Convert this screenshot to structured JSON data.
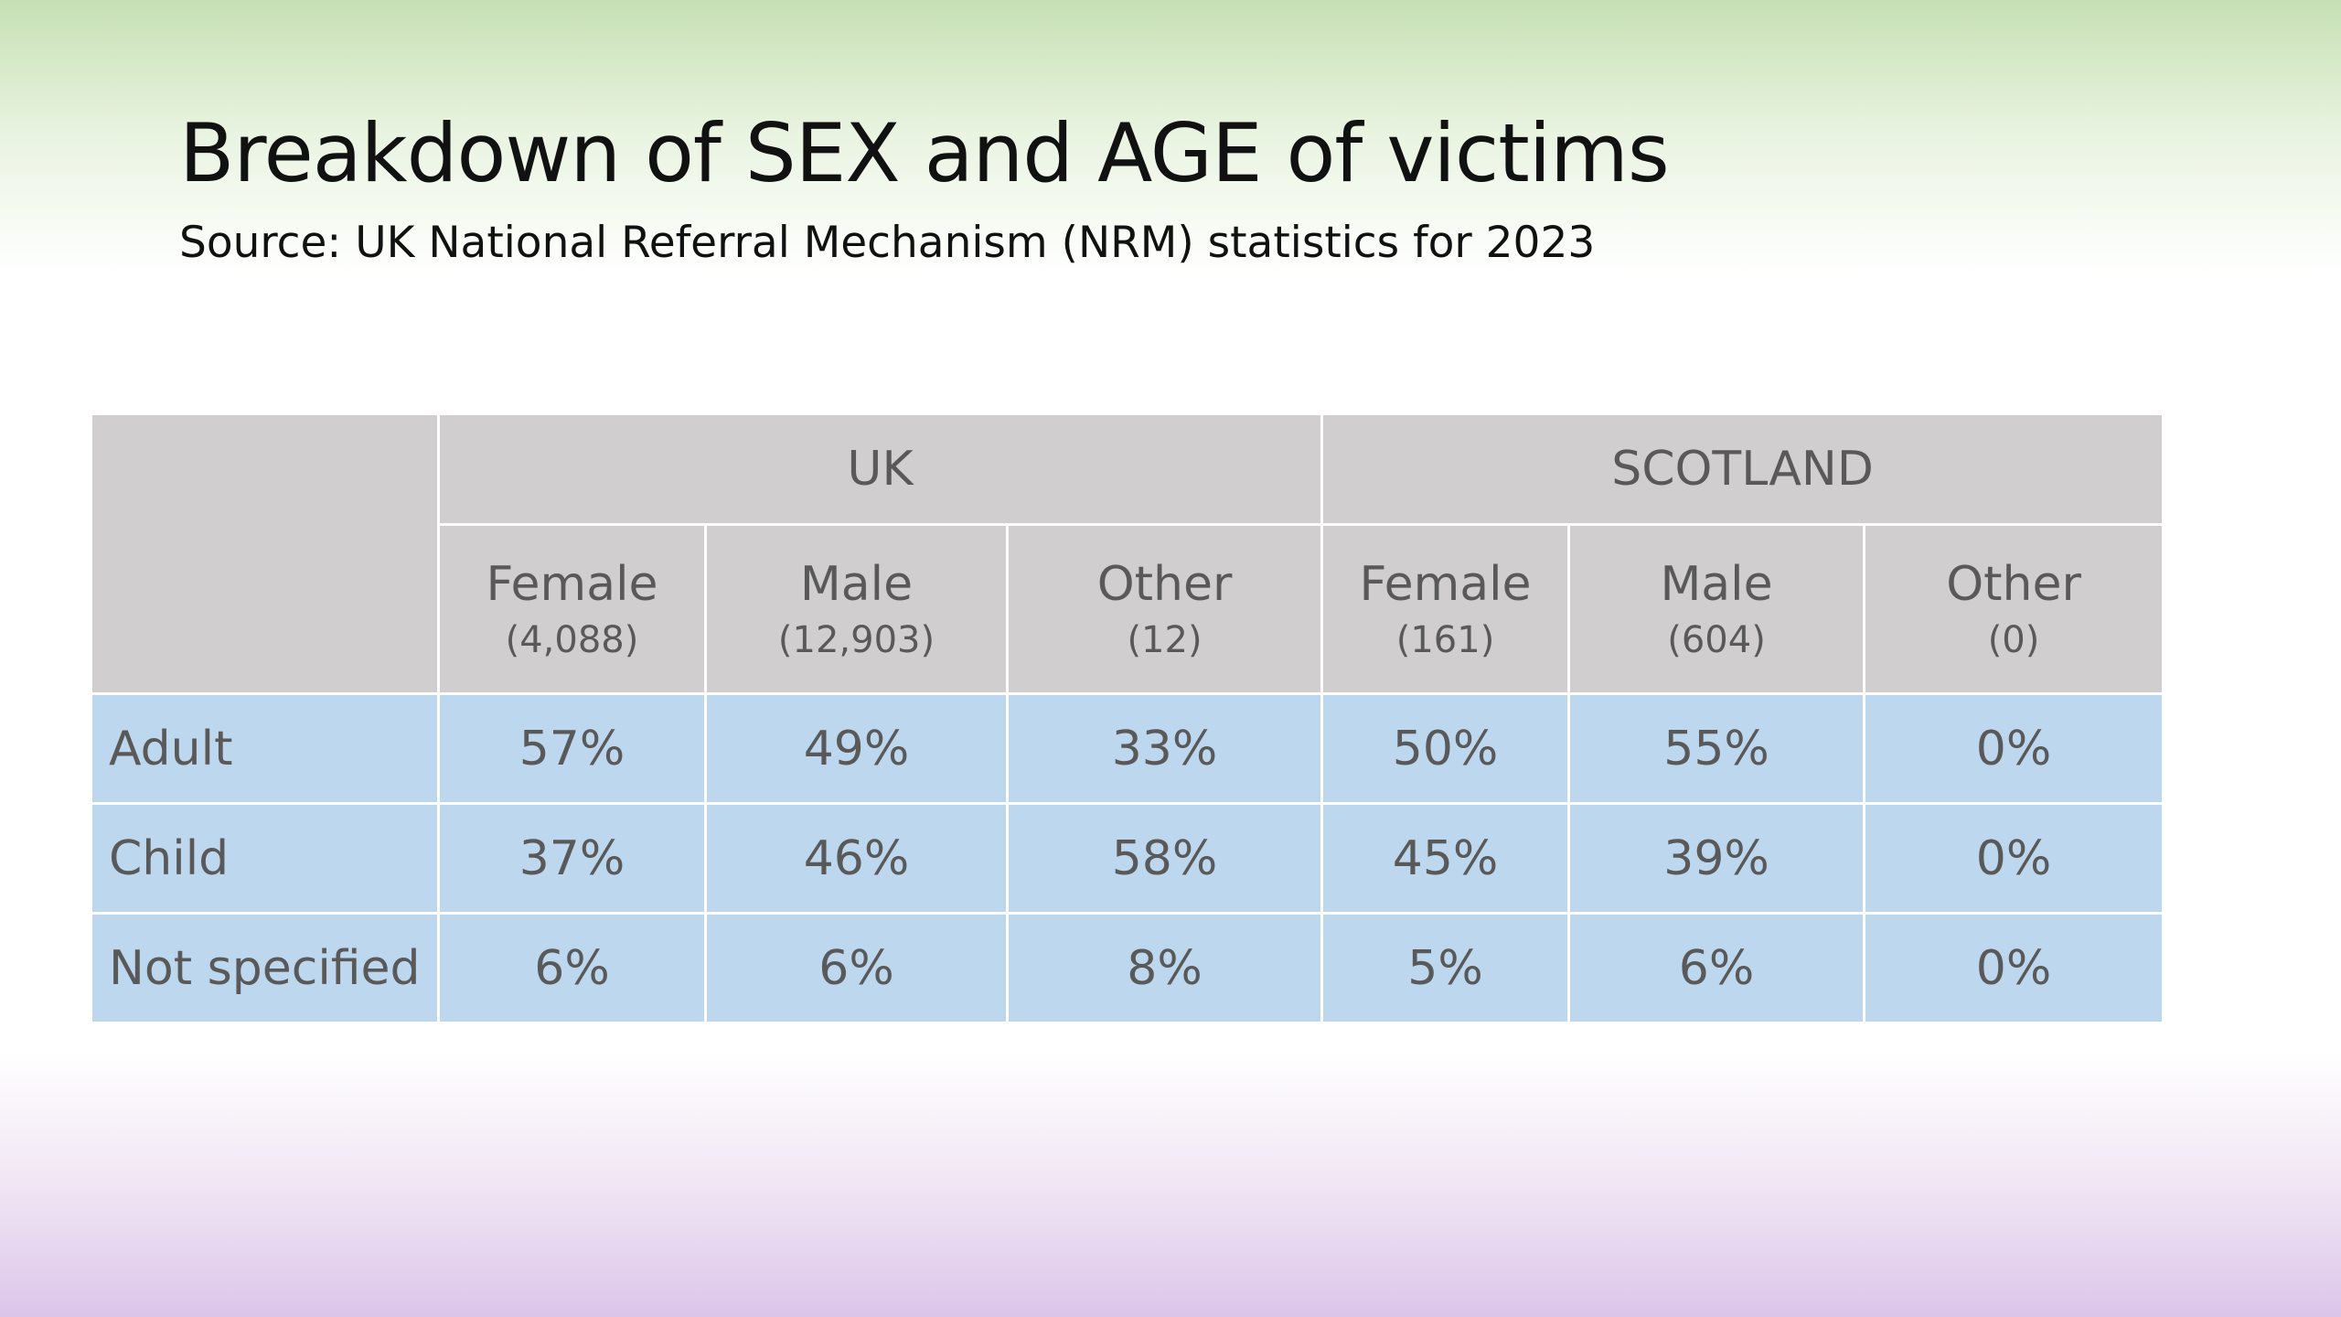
{
  "title": "Breakdown of SEX and AGE of victims",
  "subtitle": "Source: UK National Referral Mechanism (NRM) statistics for 2023",
  "table": {
    "groups": [
      {
        "label": "UK",
        "columns": [
          {
            "sex": "Female",
            "count": "(4,088)"
          },
          {
            "sex": "Male",
            "count": "(12,903)"
          },
          {
            "sex": "Other",
            "count": "(12)"
          }
        ]
      },
      {
        "label": "SCOTLAND",
        "columns": [
          {
            "sex": "Female",
            "count": "(161)"
          },
          {
            "sex": "Male",
            "count": "(604)"
          },
          {
            "sex": "Other",
            "count": "(0)"
          }
        ]
      }
    ],
    "rows": [
      {
        "label": "Adult",
        "values": [
          "57%",
          "49%",
          "33%",
          "50%",
          "55%",
          "0%"
        ]
      },
      {
        "label": "Child",
        "values": [
          "37%",
          "46%",
          "58%",
          "45%",
          "39%",
          "0%"
        ]
      },
      {
        "label": "Not specified",
        "values": [
          "6%",
          "6%",
          "8%",
          "5%",
          "6%",
          "0%"
        ]
      }
    ]
  },
  "colors": {
    "header_fill": "#d0cece",
    "body_fill": "#bdd7ee",
    "text": "#595959"
  }
}
